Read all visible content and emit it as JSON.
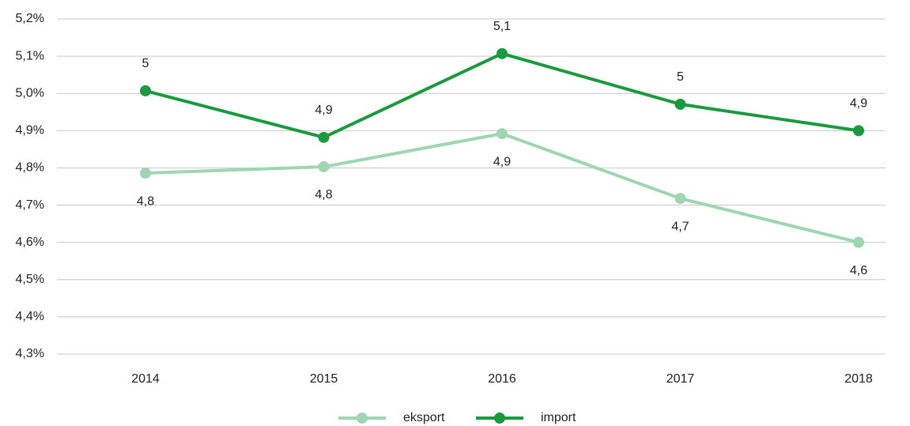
{
  "chart_data": {
    "type": "line",
    "categories": [
      "2014",
      "2015",
      "2016",
      "2017",
      "2018"
    ],
    "series": [
      {
        "name": "eksport",
        "color": "#9dd6b0",
        "values": [
          4.786,
          4.803,
          4.892,
          4.718,
          4.6
        ],
        "value_labels": [
          "4,8",
          "4,8",
          "4,9",
          "4,7",
          "4,6"
        ]
      },
      {
        "name": "import",
        "color": "#1a9a3e",
        "values": [
          5.007,
          4.882,
          5.107,
          4.971,
          4.9
        ],
        "value_labels": [
          "5",
          "4,9",
          "5,1",
          "5",
          "4,9"
        ]
      }
    ],
    "ylim": [
      4.3,
      5.2
    ],
    "yticks": [
      {
        "value": 4.3,
        "label": "4,3%"
      },
      {
        "value": 4.4,
        "label": "4,4%"
      },
      {
        "value": 4.5,
        "label": "4,5%"
      },
      {
        "value": 4.6,
        "label": "4,6%"
      },
      {
        "value": 4.7,
        "label": "4,7%"
      },
      {
        "value": 4.8,
        "label": "4,8%"
      },
      {
        "value": 4.9,
        "label": "4,9%"
      },
      {
        "value": 5.0,
        "label": "5,0%"
      },
      {
        "value": 5.1,
        "label": "5,1%"
      },
      {
        "value": 5.2,
        "label": "5,2%"
      }
    ],
    "grid": true,
    "legend": "bottom"
  }
}
